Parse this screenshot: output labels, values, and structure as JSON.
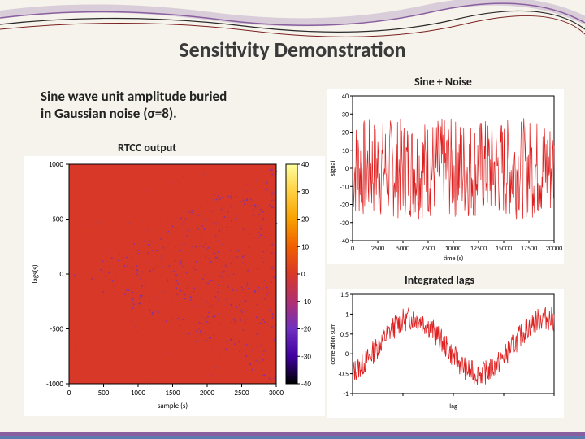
{
  "title": "Sensitivity Demonstration",
  "subtitle_line1": "Sine wave unit amplitude buried",
  "subtitle_line2": "in Gaussian noise (σ=8).",
  "labels": {
    "rtcc": "RTCC output",
    "sine_noise": "Sine + Noise",
    "integrated": "Integrated lags"
  },
  "colors": {
    "slide_bg": "#f5f3eb",
    "wave1": "#8a5fa0",
    "wave2": "#2a2a2a",
    "wave3": "#7a2020",
    "text_dark": "#3a3a3a",
    "noise_red": "#de2020",
    "heatmap_base": "#d83828",
    "heatmap_purple": "#7030c0",
    "black": "#000000"
  },
  "rtcc": {
    "type": "heatmap",
    "xlabel": "sample (s)",
    "ylabel": "lags(s)",
    "xticks": [
      0,
      500,
      1000,
      1500,
      2000,
      2500,
      3000
    ],
    "yticks": [
      -1000,
      -500,
      0,
      500,
      1000
    ],
    "colorbar_ticks": [
      -40,
      -30,
      -20,
      -10,
      0,
      10,
      20,
      30,
      40
    ],
    "colorbar_colors": [
      "#000000",
      "#4000a0",
      "#7030c0",
      "#b03070",
      "#d83828",
      "#f06000",
      "#f8a000",
      "#ffd040",
      "#ffffa0"
    ],
    "plot_bg": "#d83828",
    "overlay_purple": "#7030c0"
  },
  "sine_noise_chart": {
    "type": "line",
    "xlabel": "time (s)",
    "ylabel": "signal",
    "xlim": [
      0,
      20000
    ],
    "ylim": [
      -40,
      40
    ],
    "xticks": [
      0,
      2500,
      5000,
      7500,
      10000,
      12500,
      15000,
      17500,
      20000
    ],
    "yticks": [
      -40,
      -30,
      -20,
      -10,
      0,
      10,
      20,
      30,
      40
    ],
    "line_color": "#de2020",
    "amplitude": 28,
    "seed_points": 400
  },
  "integrated_chart": {
    "type": "line",
    "xlabel": "lag",
    "ylabel": "correlation sum",
    "ylim": [
      -1.0,
      1.5
    ],
    "yticks": [
      -1.0,
      -0.5,
      0,
      0.5,
      1.0,
      1.5
    ],
    "line_color": "#de2020",
    "seed_points": 400
  },
  "footer": {
    "colors": [
      "#8a5fa0",
      "#5a7ab0"
    ]
  }
}
